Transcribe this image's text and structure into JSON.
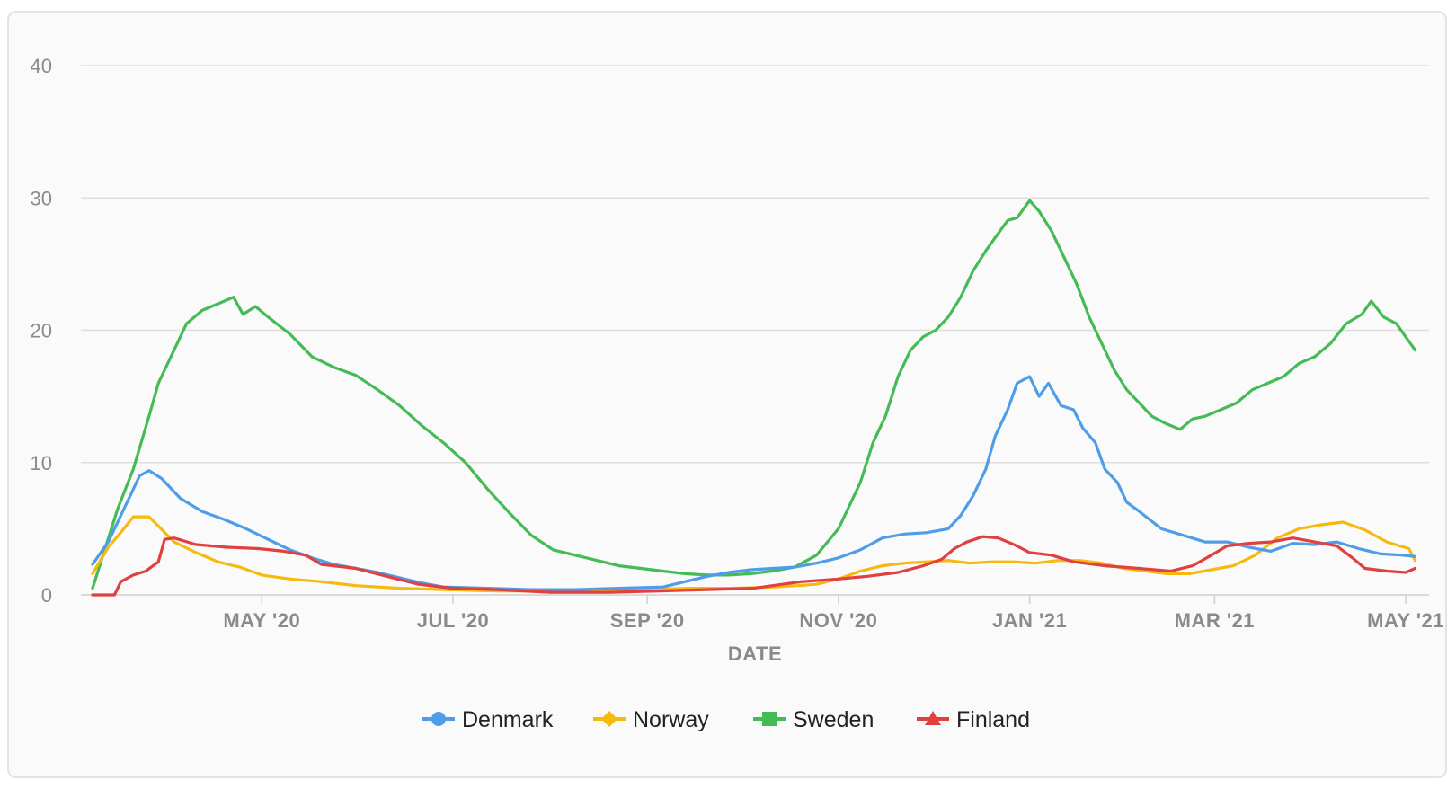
{
  "chart_data": {
    "type": "line",
    "title": "",
    "xlabel": "DATE",
    "ylabel": "",
    "ylim": [
      0,
      40
    ],
    "yticks": [
      "0",
      "10",
      "20",
      "30",
      "40"
    ],
    "xticks": [
      "MAY '20",
      "JUL '20",
      "SEP '20",
      "NOV '20",
      "JAN '21",
      "MAR '21",
      "MAY '21"
    ],
    "xtick_dates": [
      "2020-05-01",
      "2020-07-01",
      "2020-09-01",
      "2020-11-01",
      "2021-01-01",
      "2021-03-01",
      "2021-05-01"
    ],
    "xlim": [
      "2020-03-08",
      "2021-05-05"
    ],
    "grid": true,
    "legend_position": "bottom",
    "series": [
      {
        "name": "Denmark",
        "color": "#4f9de8",
        "marker": "circle",
        "points": [
          [
            "2020-03-08",
            2.3
          ],
          [
            "2020-03-13",
            4.0
          ],
          [
            "2020-03-18",
            6.5
          ],
          [
            "2020-03-23",
            9.0
          ],
          [
            "2020-03-26",
            9.4
          ],
          [
            "2020-03-30",
            8.8
          ],
          [
            "2020-04-05",
            7.3
          ],
          [
            "2020-04-12",
            6.3
          ],
          [
            "2020-04-19",
            5.7
          ],
          [
            "2020-04-26",
            5.0
          ],
          [
            "2020-05-03",
            4.2
          ],
          [
            "2020-05-10",
            3.4
          ],
          [
            "2020-05-17",
            2.8
          ],
          [
            "2020-05-24",
            2.3
          ],
          [
            "2020-05-31",
            2.0
          ],
          [
            "2020-06-07",
            1.7
          ],
          [
            "2020-06-14",
            1.3
          ],
          [
            "2020-06-21",
            0.9
          ],
          [
            "2020-06-28",
            0.6
          ],
          [
            "2020-07-12",
            0.5
          ],
          [
            "2020-07-26",
            0.4
          ],
          [
            "2020-08-09",
            0.4
          ],
          [
            "2020-08-23",
            0.5
          ],
          [
            "2020-09-06",
            0.6
          ],
          [
            "2020-09-13",
            1.0
          ],
          [
            "2020-09-20",
            1.4
          ],
          [
            "2020-09-27",
            1.7
          ],
          [
            "2020-10-04",
            1.9
          ],
          [
            "2020-10-11",
            2.0
          ],
          [
            "2020-10-18",
            2.1
          ],
          [
            "2020-10-25",
            2.4
          ],
          [
            "2020-11-01",
            2.8
          ],
          [
            "2020-11-08",
            3.4
          ],
          [
            "2020-11-15",
            4.3
          ],
          [
            "2020-11-22",
            4.6
          ],
          [
            "2020-11-29",
            4.7
          ],
          [
            "2020-12-06",
            5.0
          ],
          [
            "2020-12-10",
            6.0
          ],
          [
            "2020-12-14",
            7.5
          ],
          [
            "2020-12-18",
            9.5
          ],
          [
            "2020-12-21",
            12.0
          ],
          [
            "2020-12-25",
            14.0
          ],
          [
            "2020-12-28",
            16.0
          ],
          [
            "2021-01-01",
            16.5
          ],
          [
            "2021-01-04",
            15.0
          ],
          [
            "2021-01-07",
            16.0
          ],
          [
            "2021-01-11",
            14.3
          ],
          [
            "2021-01-15",
            14.0
          ],
          [
            "2021-01-18",
            12.6
          ],
          [
            "2021-01-22",
            11.5
          ],
          [
            "2021-01-25",
            9.5
          ],
          [
            "2021-01-29",
            8.5
          ],
          [
            "2021-02-01",
            7.0
          ],
          [
            "2021-02-05",
            6.3
          ],
          [
            "2021-02-12",
            5.0
          ],
          [
            "2021-02-19",
            4.5
          ],
          [
            "2021-02-26",
            4.0
          ],
          [
            "2021-03-05",
            4.0
          ],
          [
            "2021-03-12",
            3.6
          ],
          [
            "2021-03-19",
            3.3
          ],
          [
            "2021-03-26",
            3.9
          ],
          [
            "2021-04-02",
            3.8
          ],
          [
            "2021-04-09",
            4.0
          ],
          [
            "2021-04-16",
            3.5
          ],
          [
            "2021-04-23",
            3.1
          ],
          [
            "2021-04-30",
            3.0
          ],
          [
            "2021-05-04",
            2.9
          ]
        ]
      },
      {
        "name": "Norway",
        "color": "#f6b90f",
        "marker": "diamond",
        "points": [
          [
            "2020-03-08",
            1.6
          ],
          [
            "2020-03-13",
            3.6
          ],
          [
            "2020-03-18",
            5.0
          ],
          [
            "2020-03-21",
            5.9
          ],
          [
            "2020-03-26",
            5.9
          ],
          [
            "2020-03-29",
            5.2
          ],
          [
            "2020-04-03",
            4.0
          ],
          [
            "2020-04-10",
            3.2
          ],
          [
            "2020-04-17",
            2.5
          ],
          [
            "2020-04-24",
            2.1
          ],
          [
            "2020-05-01",
            1.5
          ],
          [
            "2020-05-10",
            1.2
          ],
          [
            "2020-05-20",
            1.0
          ],
          [
            "2020-05-31",
            0.7
          ],
          [
            "2020-06-14",
            0.5
          ],
          [
            "2020-06-28",
            0.4
          ],
          [
            "2020-07-15",
            0.3
          ],
          [
            "2020-08-01",
            0.3
          ],
          [
            "2020-08-16",
            0.4
          ],
          [
            "2020-08-31",
            0.4
          ],
          [
            "2020-09-14",
            0.5
          ],
          [
            "2020-09-28",
            0.5
          ],
          [
            "2020-10-12",
            0.6
          ],
          [
            "2020-10-25",
            0.8
          ],
          [
            "2020-11-01",
            1.2
          ],
          [
            "2020-11-08",
            1.8
          ],
          [
            "2020-11-15",
            2.2
          ],
          [
            "2020-11-22",
            2.4
          ],
          [
            "2020-11-29",
            2.5
          ],
          [
            "2020-12-06",
            2.6
          ],
          [
            "2020-12-13",
            2.4
          ],
          [
            "2020-12-20",
            2.5
          ],
          [
            "2020-12-27",
            2.5
          ],
          [
            "2021-01-03",
            2.4
          ],
          [
            "2021-01-10",
            2.6
          ],
          [
            "2021-01-17",
            2.6
          ],
          [
            "2021-01-24",
            2.4
          ],
          [
            "2021-01-31",
            2.0
          ],
          [
            "2021-02-07",
            1.8
          ],
          [
            "2021-02-14",
            1.6
          ],
          [
            "2021-02-21",
            1.6
          ],
          [
            "2021-02-28",
            1.9
          ],
          [
            "2021-03-07",
            2.2
          ],
          [
            "2021-03-14",
            3.0
          ],
          [
            "2021-03-21",
            4.3
          ],
          [
            "2021-03-28",
            5.0
          ],
          [
            "2021-04-04",
            5.3
          ],
          [
            "2021-04-11",
            5.5
          ],
          [
            "2021-04-18",
            4.9
          ],
          [
            "2021-04-25",
            4.0
          ],
          [
            "2021-05-02",
            3.5
          ],
          [
            "2021-05-04",
            2.6
          ]
        ]
      },
      {
        "name": "Sweden",
        "color": "#44bb55",
        "marker": "square",
        "points": [
          [
            "2020-03-08",
            0.5
          ],
          [
            "2020-03-12",
            3.5
          ],
          [
            "2020-03-16",
            6.5
          ],
          [
            "2020-03-21",
            9.5
          ],
          [
            "2020-03-26",
            13.5
          ],
          [
            "2020-03-29",
            16.0
          ],
          [
            "2020-04-02",
            18.0
          ],
          [
            "2020-04-07",
            20.5
          ],
          [
            "2020-04-12",
            21.5
          ],
          [
            "2020-04-17",
            22.0
          ],
          [
            "2020-04-22",
            22.5
          ],
          [
            "2020-04-25",
            21.2
          ],
          [
            "2020-04-29",
            21.8
          ],
          [
            "2020-05-03",
            21.0
          ],
          [
            "2020-05-10",
            19.7
          ],
          [
            "2020-05-17",
            18.0
          ],
          [
            "2020-05-24",
            17.2
          ],
          [
            "2020-05-31",
            16.6
          ],
          [
            "2020-06-07",
            15.5
          ],
          [
            "2020-06-14",
            14.3
          ],
          [
            "2020-06-21",
            12.8
          ],
          [
            "2020-06-28",
            11.5
          ],
          [
            "2020-07-05",
            10.0
          ],
          [
            "2020-07-12",
            8.0
          ],
          [
            "2020-07-19",
            6.2
          ],
          [
            "2020-07-26",
            4.5
          ],
          [
            "2020-08-02",
            3.4
          ],
          [
            "2020-08-09",
            3.0
          ],
          [
            "2020-08-16",
            2.6
          ],
          [
            "2020-08-23",
            2.2
          ],
          [
            "2020-08-30",
            2.0
          ],
          [
            "2020-09-06",
            1.8
          ],
          [
            "2020-09-13",
            1.6
          ],
          [
            "2020-09-20",
            1.5
          ],
          [
            "2020-09-27",
            1.5
          ],
          [
            "2020-10-04",
            1.6
          ],
          [
            "2020-10-11",
            1.8
          ],
          [
            "2020-10-18",
            2.1
          ],
          [
            "2020-10-25",
            3.0
          ],
          [
            "2020-11-01",
            5.0
          ],
          [
            "2020-11-04",
            6.5
          ],
          [
            "2020-11-08",
            8.5
          ],
          [
            "2020-11-12",
            11.5
          ],
          [
            "2020-11-16",
            13.5
          ],
          [
            "2020-11-20",
            16.5
          ],
          [
            "2020-11-24",
            18.5
          ],
          [
            "2020-11-28",
            19.5
          ],
          [
            "2020-12-02",
            20.0
          ],
          [
            "2020-12-06",
            21.0
          ],
          [
            "2020-12-10",
            22.5
          ],
          [
            "2020-12-14",
            24.5
          ],
          [
            "2020-12-18",
            26.0
          ],
          [
            "2020-12-21",
            27.0
          ],
          [
            "2020-12-25",
            28.3
          ],
          [
            "2020-12-28",
            28.5
          ],
          [
            "2021-01-01",
            29.8
          ],
          [
            "2021-01-04",
            29.0
          ],
          [
            "2021-01-08",
            27.5
          ],
          [
            "2021-01-12",
            25.5
          ],
          [
            "2021-01-16",
            23.5
          ],
          [
            "2021-01-20",
            21.0
          ],
          [
            "2021-01-24",
            19.0
          ],
          [
            "2021-01-28",
            17.0
          ],
          [
            "2021-02-01",
            15.5
          ],
          [
            "2021-02-05",
            14.5
          ],
          [
            "2021-02-09",
            13.5
          ],
          [
            "2021-02-13",
            13.0
          ],
          [
            "2021-02-18",
            12.5
          ],
          [
            "2021-02-22",
            13.3
          ],
          [
            "2021-02-26",
            13.5
          ],
          [
            "2021-03-03",
            14.0
          ],
          [
            "2021-03-08",
            14.5
          ],
          [
            "2021-03-13",
            15.5
          ],
          [
            "2021-03-18",
            16.0
          ],
          [
            "2021-03-23",
            16.5
          ],
          [
            "2021-03-28",
            17.5
          ],
          [
            "2021-04-02",
            18.0
          ],
          [
            "2021-04-07",
            19.0
          ],
          [
            "2021-04-12",
            20.5
          ],
          [
            "2021-04-17",
            21.2
          ],
          [
            "2021-04-20",
            22.2
          ],
          [
            "2021-04-24",
            21.0
          ],
          [
            "2021-04-28",
            20.5
          ],
          [
            "2021-05-01",
            19.5
          ],
          [
            "2021-05-04",
            18.5
          ]
        ]
      },
      {
        "name": "Finland",
        "color": "#e04040",
        "marker": "triangle",
        "points": [
          [
            "2020-03-08",
            0.0
          ],
          [
            "2020-03-15",
            0.0
          ],
          [
            "2020-03-17",
            1.0
          ],
          [
            "2020-03-21",
            1.5
          ],
          [
            "2020-03-25",
            1.8
          ],
          [
            "2020-03-29",
            2.5
          ],
          [
            "2020-03-31",
            4.2
          ],
          [
            "2020-04-03",
            4.3
          ],
          [
            "2020-04-10",
            3.8
          ],
          [
            "2020-04-20",
            3.6
          ],
          [
            "2020-04-30",
            3.5
          ],
          [
            "2020-05-08",
            3.3
          ],
          [
            "2020-05-15",
            3.0
          ],
          [
            "2020-05-20",
            2.3
          ],
          [
            "2020-05-31",
            2.0
          ],
          [
            "2020-06-10",
            1.4
          ],
          [
            "2020-06-20",
            0.8
          ],
          [
            "2020-07-01",
            0.5
          ],
          [
            "2020-07-15",
            0.4
          ],
          [
            "2020-08-01",
            0.2
          ],
          [
            "2020-08-20",
            0.2
          ],
          [
            "2020-09-05",
            0.3
          ],
          [
            "2020-09-20",
            0.4
          ],
          [
            "2020-10-05",
            0.5
          ],
          [
            "2020-10-20",
            1.0
          ],
          [
            "2020-11-01",
            1.2
          ],
          [
            "2020-11-10",
            1.4
          ],
          [
            "2020-11-20",
            1.7
          ],
          [
            "2020-11-28",
            2.2
          ],
          [
            "2020-12-04",
            2.7
          ],
          [
            "2020-12-08",
            3.5
          ],
          [
            "2020-12-12",
            4.0
          ],
          [
            "2020-12-17",
            4.4
          ],
          [
            "2020-12-22",
            4.3
          ],
          [
            "2020-12-27",
            3.8
          ],
          [
            "2021-01-01",
            3.2
          ],
          [
            "2021-01-08",
            3.0
          ],
          [
            "2021-01-15",
            2.5
          ],
          [
            "2021-01-25",
            2.2
          ],
          [
            "2021-02-05",
            2.0
          ],
          [
            "2021-02-15",
            1.8
          ],
          [
            "2021-02-22",
            2.2
          ],
          [
            "2021-02-28",
            3.0
          ],
          [
            "2021-03-05",
            3.7
          ],
          [
            "2021-03-12",
            3.9
          ],
          [
            "2021-03-19",
            4.0
          ],
          [
            "2021-03-26",
            4.3
          ],
          [
            "2021-04-02",
            4.0
          ],
          [
            "2021-04-09",
            3.7
          ],
          [
            "2021-04-14",
            2.8
          ],
          [
            "2021-04-18",
            2.0
          ],
          [
            "2021-04-25",
            1.8
          ],
          [
            "2021-05-01",
            1.7
          ],
          [
            "2021-05-04",
            2.0
          ]
        ]
      }
    ]
  }
}
